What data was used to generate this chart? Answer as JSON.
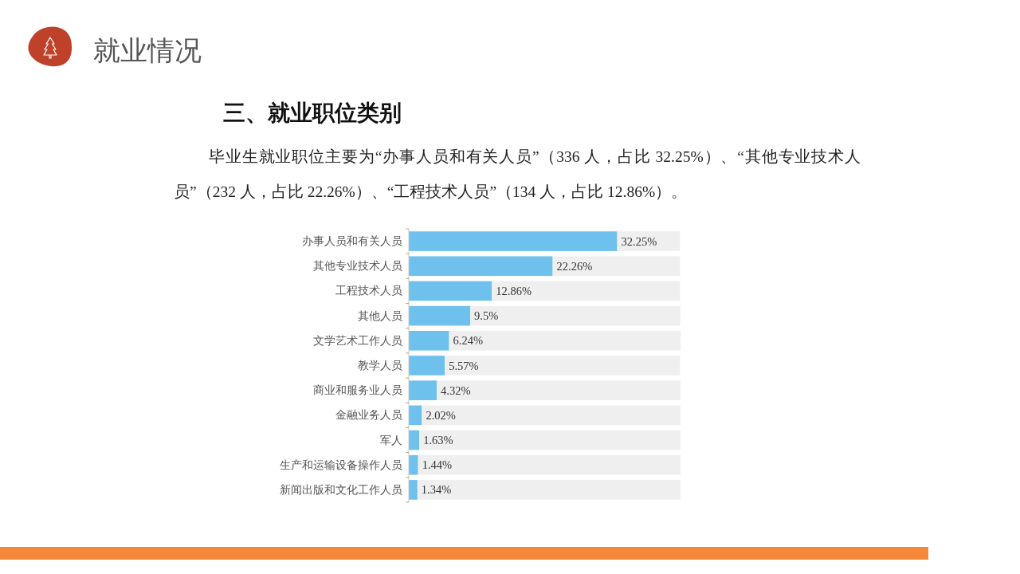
{
  "chart_data": {
    "type": "bar",
    "orientation": "horizontal",
    "stacked": true,
    "title": "三、就业职位类别",
    "subtitle": "毕业生就业职位主要为“办事人员和有关人员”（336 人，占比 32.25%）、“其他专业技术人员”（232 人，占比 22.26%）、“工程技术人员”（134 人，占比 12.86%）。",
    "annotations": [
      "就业情况"
    ],
    "categories": [
      "办事人员和有关人员",
      "其他专业技术人员",
      "工程技术人员",
      "其他人员",
      "文学艺术工作人员",
      "教学人员",
      "商业和服务业人员",
      "金融业务人员",
      "军人",
      "生产和运输设备操作人员",
      "新闻出版和文化工作人员"
    ],
    "series": [
      {
        "color": "#6fc1ed",
        "values": [
          32.25,
          22.26,
          12.86,
          9.5,
          6.24,
          5.57,
          4.32,
          2.02,
          1.63,
          1.44,
          1.34
        ],
        "value_labels": [
          "32.25%",
          "22.26%",
          "12.86%",
          "9.5%",
          "6.24%",
          "5.57%",
          "4.32%",
          "2.02%",
          "1.63%",
          "1.44%",
          "1.34%"
        ]
      },
      {
        "color": "#efefef",
        "values": [
          9.7,
          19.7,
          29.1,
          32.5,
          35.8,
          36.4,
          37.7,
          40.0,
          40.4,
          40.6,
          40.7
        ]
      }
    ]
  }
}
